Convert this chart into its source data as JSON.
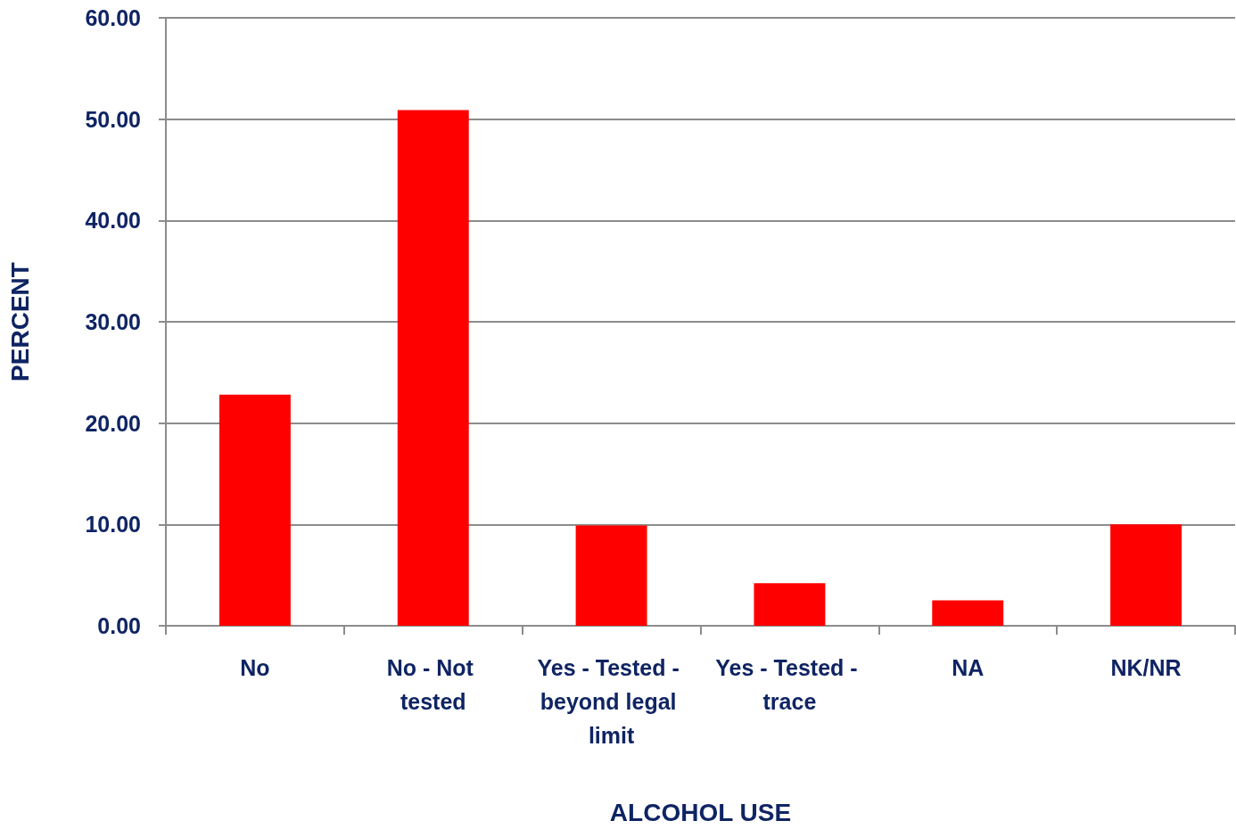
{
  "chart_data": {
    "type": "bar",
    "xlabel": "ALCOHOL USE",
    "ylabel": "PERCENT",
    "categories": [
      "No",
      "No - Not tested",
      "Yes - Tested - beyond legal limit",
      "Yes - Tested - trace",
      "NA",
      "NK/NR"
    ],
    "values": [
      22.8,
      50.9,
      9.9,
      4.2,
      2.5,
      10.0
    ],
    "color": "#ff0000",
    "ylim": [
      0,
      60
    ],
    "yticks": [
      {
        "value": 0,
        "label": "0.00"
      },
      {
        "value": 10,
        "label": "10.00"
      },
      {
        "value": 20,
        "label": "20.00"
      },
      {
        "value": 30,
        "label": "30.00"
      },
      {
        "value": 40,
        "label": "40.00"
      },
      {
        "value": 50,
        "label": "50.00"
      },
      {
        "value": 60,
        "label": "60.00"
      }
    ],
    "grid": "y"
  }
}
